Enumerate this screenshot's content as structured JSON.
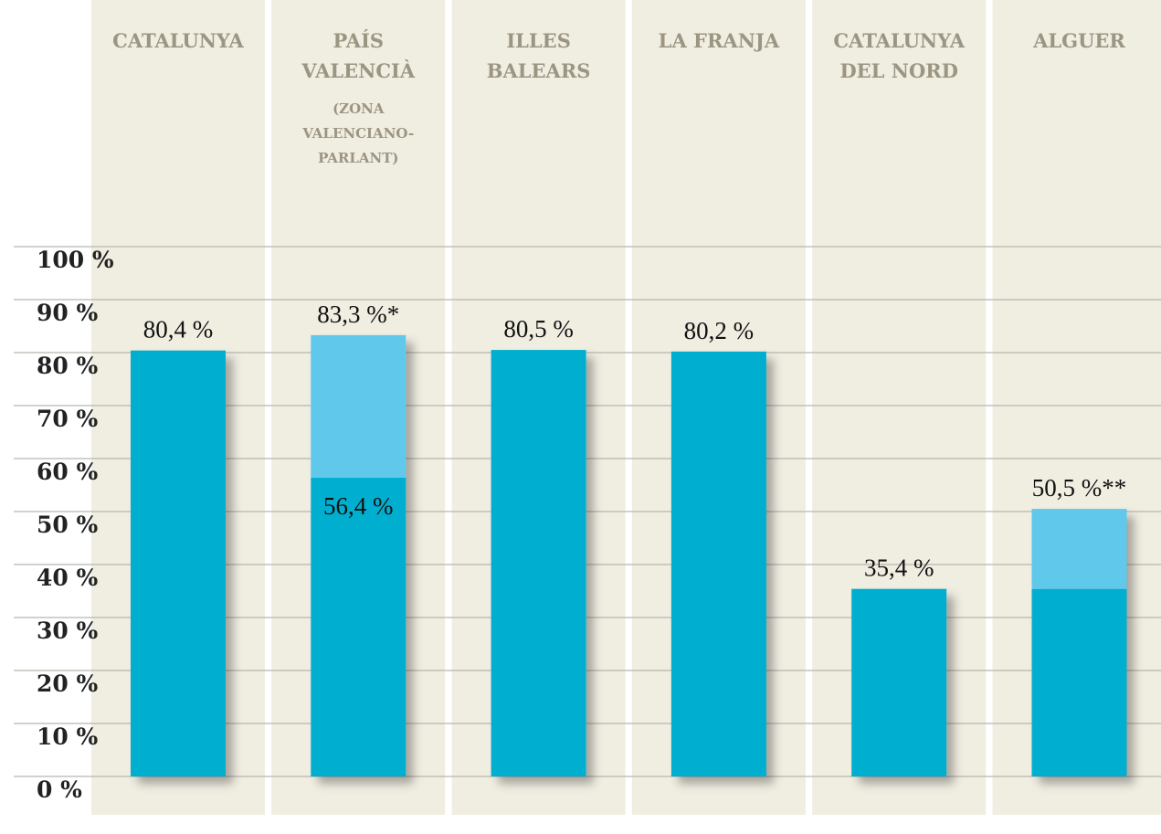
{
  "chart_data": {
    "type": "stacked-bar",
    "categories": [
      [
        "CATALUNYA"
      ],
      [
        "PAÍS",
        "VALENCIÀ"
      ],
      [
        "ILLES",
        "BALEARS"
      ],
      [
        "LA FRANJA"
      ],
      [
        "CATALUNYA",
        "DEL NORD"
      ],
      [
        "ALGUER"
      ]
    ],
    "category_notes": [
      null,
      [
        "(ZONA",
        "VALENCIANO-",
        "PARLANT)"
      ],
      null,
      null,
      null,
      null
    ],
    "series": [
      {
        "color": "#00afcf",
        "values": [
          80.4,
          56.4,
          80.5,
          80.2,
          35.4,
          35.4
        ],
        "value_labels": [
          "80,4 %",
          "56,4 %",
          "80,5 %",
          "80,2 %",
          "35,4 %",
          null
        ]
      },
      {
        "color": "#5ec8eb",
        "values": [
          null,
          26.9,
          null,
          null,
          null,
          15.1
        ]
      }
    ],
    "totals": [
      null,
      83.3,
      null,
      null,
      null,
      50.5
    ],
    "total_labels": [
      null,
      "83,3 %*",
      null,
      null,
      null,
      "50,5 %**"
    ],
    "ylim": [
      0,
      100
    ],
    "yticks": [
      {
        "value": 0,
        "label": "0 %"
      },
      {
        "value": 10,
        "label": "10 %"
      },
      {
        "value": 20,
        "label": "20 %"
      },
      {
        "value": 30,
        "label": "30 %"
      },
      {
        "value": 40,
        "label": "40 %"
      },
      {
        "value": 50,
        "label": "50 %"
      },
      {
        "value": 60,
        "label": "60 %"
      },
      {
        "value": 70,
        "label": "70 %"
      },
      {
        "value": 80,
        "label": "80 %"
      },
      {
        "value": 90,
        "label": "90 %"
      },
      {
        "value": 100,
        "label": "100 %"
      }
    ],
    "grid": true
  }
}
